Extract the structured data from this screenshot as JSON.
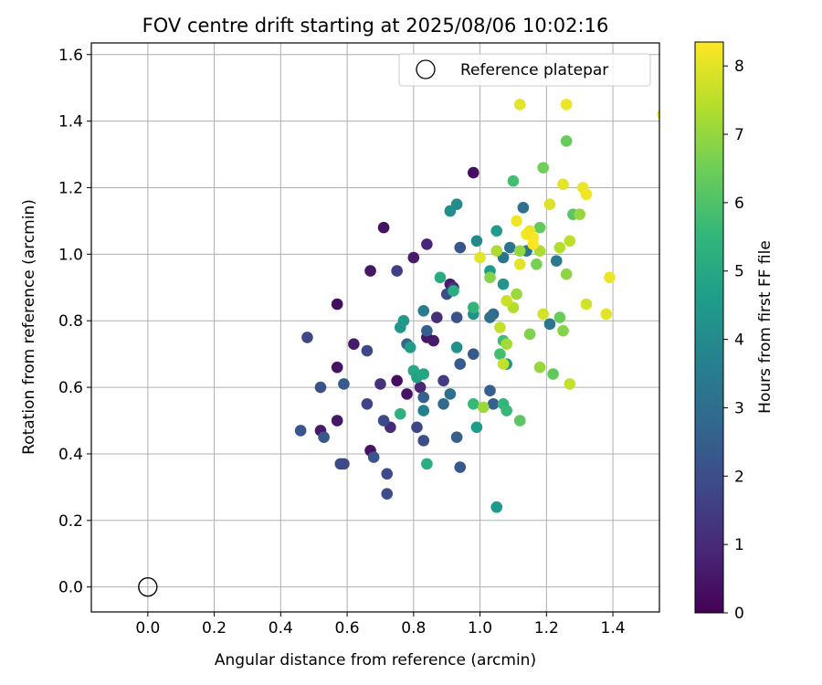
{
  "chart_data": {
    "type": "scatter",
    "title": "FOV centre drift starting at 2025/08/06 10:02:16",
    "xlabel": "Angular distance from reference (arcmin)",
    "ylabel": "Rotation from reference (arcmin)",
    "xlim": [
      -0.17,
      1.54
    ],
    "ylim": [
      -0.075,
      1.635
    ],
    "xticks": [
      0.0,
      0.2,
      0.4,
      0.6,
      0.8,
      1.0,
      1.2,
      1.4
    ],
    "xtick_labels": [
      "0.0",
      "0.2",
      "0.4",
      "0.6",
      "0.8",
      "1.0",
      "1.2",
      "1.4"
    ],
    "yticks": [
      0.0,
      0.2,
      0.4,
      0.6,
      0.8,
      1.0,
      1.2,
      1.4,
      1.6
    ],
    "ytick_labels": [
      "0.0",
      "0.2",
      "0.4",
      "0.6",
      "0.8",
      "1.0",
      "1.2",
      "1.4",
      "1.6"
    ],
    "grid": true,
    "legend": {
      "placement": "top-right",
      "entries": [
        "Reference platepar"
      ]
    },
    "reference_point": {
      "x": 0.0,
      "y": 0.0,
      "style": "open-circle"
    },
    "colorbar": {
      "label": "Hours from first FF file",
      "colormap": "viridis",
      "range": [
        0,
        8.35
      ],
      "ticks": [
        0,
        1,
        2,
        3,
        4,
        5,
        6,
        7,
        8
      ],
      "tick_labels": [
        "0",
        "1",
        "2",
        "3",
        "4",
        "5",
        "6",
        "7",
        "8"
      ]
    },
    "viridis_stops": [
      "#440154",
      "#482878",
      "#3e4989",
      "#31688e",
      "#26828e",
      "#1f9e89",
      "#35b779",
      "#6ece58",
      "#b5de2b",
      "#fde725"
    ],
    "series": [
      {
        "name": "Reference platepar",
        "points": [
          [
            0.98,
            1.245,
            0.3
          ],
          [
            0.71,
            1.08,
            0.4
          ],
          [
            0.67,
            0.95,
            0.5
          ],
          [
            0.8,
            0.99,
            0.6
          ],
          [
            0.57,
            0.85,
            0.3
          ],
          [
            0.62,
            0.73,
            0.6
          ],
          [
            0.57,
            0.66,
            0.4
          ],
          [
            0.57,
            0.5,
            0.5
          ],
          [
            0.52,
            0.47,
            0.6
          ],
          [
            0.67,
            0.41,
            0.4
          ],
          [
            0.75,
            0.62,
            0.3
          ],
          [
            0.78,
            0.58,
            0.4
          ],
          [
            0.84,
            0.75,
            0.5
          ],
          [
            0.86,
            0.74,
            0.6
          ],
          [
            0.91,
            0.91,
            0.7
          ],
          [
            0.84,
            1.03,
            0.9
          ],
          [
            0.82,
            0.6,
            0.9
          ],
          [
            0.73,
            0.48,
            1.0
          ],
          [
            0.7,
            0.61,
            1.2
          ],
          [
            0.87,
            0.81,
            1.1
          ],
          [
            0.92,
            0.9,
            1.1
          ],
          [
            0.75,
            0.95,
            1.6
          ],
          [
            0.48,
            0.75,
            1.8
          ],
          [
            0.66,
            0.71,
            1.8
          ],
          [
            0.66,
            0.55,
            1.7
          ],
          [
            0.59,
            0.37,
            1.8
          ],
          [
            0.58,
            0.37,
            1.9
          ],
          [
            0.72,
            0.34,
            1.9
          ],
          [
            0.72,
            0.28,
            2.0
          ],
          [
            0.68,
            0.39,
            2.2
          ],
          [
            0.71,
            0.5,
            1.9
          ],
          [
            0.81,
            0.48,
            1.8
          ],
          [
            0.83,
            0.44,
            2.0
          ],
          [
            0.52,
            0.6,
            2.1
          ],
          [
            0.46,
            0.47,
            2.2
          ],
          [
            0.53,
            0.45,
            2.3
          ],
          [
            0.59,
            0.61,
            2.4
          ],
          [
            0.89,
            0.62,
            1.5
          ],
          [
            0.9,
            0.88,
            2.0
          ],
          [
            0.93,
            0.81,
            2.1
          ],
          [
            0.94,
            1.02,
            2.2
          ],
          [
            0.94,
            0.36,
            2.3
          ],
          [
            0.93,
            0.45,
            2.5
          ],
          [
            0.83,
            0.57,
            2.6
          ],
          [
            0.84,
            0.77,
            2.5
          ],
          [
            0.78,
            0.73,
            2.8
          ],
          [
            0.89,
            0.55,
            2.9
          ],
          [
            0.91,
            0.58,
            3.0
          ],
          [
            0.98,
            0.7,
            2.3
          ],
          [
            0.94,
            0.67,
            2.4
          ],
          [
            1.03,
            0.59,
            2.5
          ],
          [
            1.04,
            0.55,
            2.6
          ],
          [
            1.04,
            0.82,
            2.9
          ],
          [
            1.03,
            0.81,
            3.1
          ],
          [
            1.07,
            0.99,
            3.2
          ],
          [
            1.09,
            1.02,
            3.3
          ],
          [
            1.13,
            1.14,
            3.1
          ],
          [
            1.14,
            1.01,
            3.2
          ],
          [
            1.21,
            0.79,
            3.3
          ],
          [
            1.23,
            0.98,
            3.4
          ],
          [
            0.83,
            0.83,
            3.5
          ],
          [
            0.83,
            0.53,
            3.6
          ],
          [
            0.99,
            1.04,
            3.9
          ],
          [
            0.93,
            1.15,
            4.0
          ],
          [
            0.91,
            1.13,
            4.1
          ],
          [
            0.93,
            0.72,
            4.2
          ],
          [
            0.98,
            0.82,
            4.3
          ],
          [
            1.07,
            0.91,
            4.3
          ],
          [
            1.08,
            0.67,
            4.4
          ],
          [
            1.03,
            0.95,
            4.5
          ],
          [
            1.05,
            0.24,
            4.5
          ],
          [
            0.99,
            0.48,
            4.6
          ],
          [
            0.76,
            0.78,
            4.4
          ],
          [
            0.77,
            0.8,
            4.5
          ],
          [
            0.79,
            0.72,
            4.6
          ],
          [
            0.84,
            0.37,
            5.2
          ],
          [
            0.76,
            0.52,
            5.3
          ],
          [
            0.8,
            0.65,
            5.0
          ],
          [
            0.81,
            0.63,
            4.8
          ],
          [
            0.83,
            0.64,
            4.9
          ],
          [
            0.88,
            0.93,
            5.1
          ],
          [
            0.92,
            0.89,
            5.2
          ],
          [
            0.98,
            0.84,
            5.5
          ],
          [
            0.98,
            0.55,
            5.6
          ],
          [
            1.05,
            1.07,
            4.6
          ],
          [
            1.07,
            0.55,
            5.5
          ],
          [
            1.08,
            0.53,
            5.6
          ],
          [
            1.07,
            0.74,
            5.7
          ],
          [
            1.06,
            0.7,
            5.8
          ],
          [
            1.1,
            1.22,
            5.8
          ],
          [
            1.12,
            0.5,
            6.2
          ],
          [
            1.22,
            0.64,
            6.3
          ],
          [
            1.26,
            1.34,
            6.4
          ],
          [
            1.19,
            1.26,
            6.5
          ],
          [
            1.18,
            1.08,
            6.3
          ],
          [
            1.17,
            0.97,
            6.6
          ],
          [
            1.28,
            1.12,
            6.2
          ],
          [
            1.25,
            0.77,
            6.8
          ],
          [
            1.26,
            0.94,
            6.9
          ],
          [
            1.24,
            0.81,
            6.4
          ],
          [
            1.15,
            0.76,
            6.7
          ],
          [
            1.18,
            0.66,
            7.0
          ],
          [
            1.08,
            0.73,
            7.2
          ],
          [
            1.11,
            0.88,
            7.1
          ],
          [
            1.12,
            1.01,
            7.0
          ],
          [
            1.03,
            0.93,
            6.8
          ],
          [
            1.05,
            1.01,
            7.3
          ],
          [
            1.06,
            0.78,
            7.6
          ],
          [
            1.1,
            0.84,
            7.4
          ],
          [
            1.15,
            1.06,
            7.5
          ],
          [
            1.18,
            1.01,
            7.3
          ],
          [
            1.24,
            1.02,
            7.4
          ],
          [
            1.27,
            1.04,
            7.5
          ],
          [
            1.27,
            0.61,
            7.6
          ],
          [
            1.3,
            1.12,
            7.0
          ],
          [
            1.32,
            0.85,
            7.8
          ],
          [
            1.38,
            0.82,
            8.0
          ],
          [
            1.39,
            0.93,
            8.1
          ],
          [
            1.25,
            1.21,
            8.0
          ],
          [
            1.31,
            1.2,
            8.1
          ],
          [
            1.32,
            1.18,
            8.2
          ],
          [
            1.21,
            1.15,
            7.9
          ],
          [
            1.12,
            0.97,
            8.0
          ],
          [
            1.11,
            1.1,
            8.2
          ],
          [
            1.15,
            1.07,
            8.1
          ],
          [
            1.16,
            1.05,
            8.3
          ],
          [
            1.16,
            1.03,
            8.3
          ],
          [
            1.14,
            1.06,
            8.2
          ],
          [
            1.0,
            0.99,
            8.0
          ],
          [
            1.12,
            1.45,
            8.0
          ],
          [
            1.26,
            1.45,
            8.1
          ],
          [
            1.55,
            1.42,
            8.3
          ],
          [
            1.08,
            0.86,
            7.7
          ],
          [
            1.19,
            0.82,
            7.8
          ],
          [
            1.01,
            0.54,
            7.1
          ],
          [
            1.07,
            0.67,
            7.6
          ]
        ]
      }
    ]
  }
}
